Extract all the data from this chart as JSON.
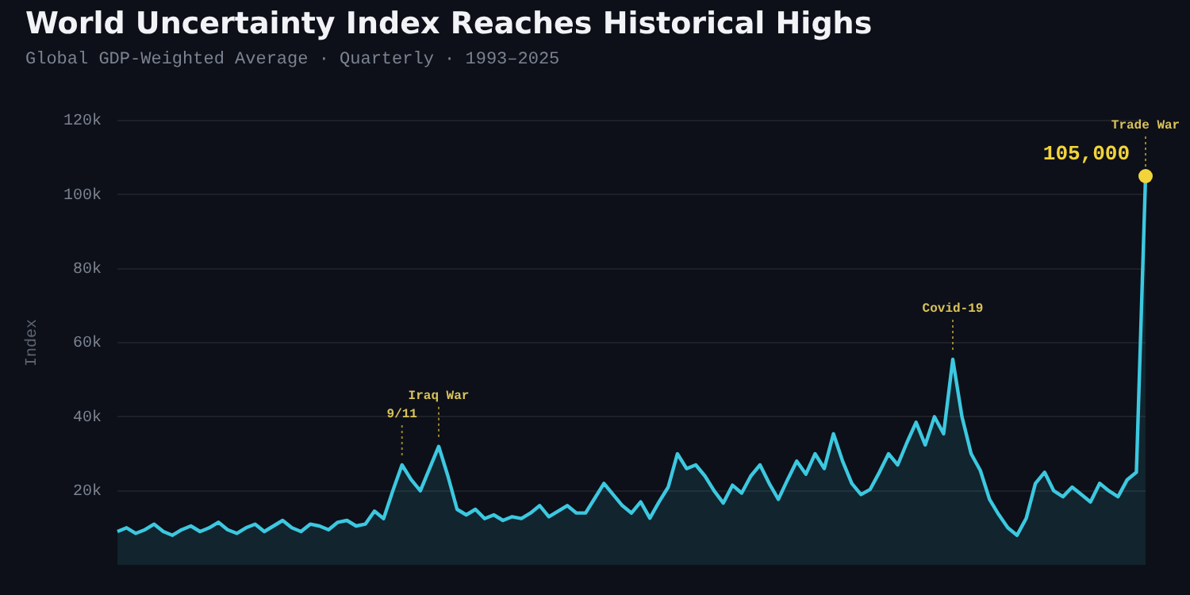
{
  "chart_data": {
    "type": "area",
    "title": "World Uncertainty Index Reaches Historical Highs",
    "subtitle": "Global GDP-Weighted Average · Quarterly · 1993–2025",
    "ylabel": "Index",
    "categories": [
      null,
      null,
      null,
      null,
      null,
      null,
      null,
      null,
      null,
      null,
      null,
      null,
      null,
      null,
      null,
      null,
      null,
      null,
      null,
      null,
      null,
      null,
      null,
      null,
      null,
      null,
      null,
      null,
      null,
      null,
      null,
      null,
      null,
      null,
      null,
      null,
      null,
      null,
      null,
      null,
      null,
      null,
      null,
      null,
      null,
      null,
      null,
      null,
      null,
      null,
      null,
      null,
      null,
      null,
      null,
      null,
      null,
      null,
      null,
      null,
      null,
      null,
      null,
      null,
      null,
      null,
      null,
      null,
      null,
      null,
      null,
      null,
      null,
      null,
      null,
      null,
      null,
      null,
      null,
      null,
      null,
      null,
      null,
      null,
      null,
      null,
      null,
      null,
      null,
      null,
      null,
      null,
      null,
      null,
      null,
      null,
      null,
      null,
      null,
      null,
      null,
      null,
      null,
      null,
      null,
      null,
      null,
      null,
      null,
      null,
      null,
      null,
      null
    ],
    "series": [
      {
        "color": "#3cc8e0",
        "values": [
          9000,
          10000,
          8500,
          9500,
          11000,
          9000,
          8000,
          9500,
          10500,
          9000,
          10000,
          11500,
          9500,
          8500,
          10000,
          11000,
          9000,
          10500,
          12000,
          10000,
          9000,
          11000,
          10500,
          9500,
          11500,
          12000,
          10500,
          11000,
          14500,
          12500,
          20000,
          27000,
          23000,
          20000,
          26000,
          32000,
          24000,
          15000,
          13500,
          15000,
          12500,
          13500,
          12000,
          13000,
          12500,
          14000,
          16000,
          13000,
          14500,
          16000,
          14000,
          14000,
          18000,
          22000,
          19000,
          16000,
          14000,
          17000,
          12600,
          17000,
          21000,
          30000,
          26000,
          27000,
          24000,
          20000,
          16700,
          21500,
          19400,
          24000,
          27000,
          22000,
          17700,
          23000,
          28000,
          24500,
          30000,
          26000,
          35400,
          28000,
          22000,
          19000,
          20400,
          25000,
          30000,
          27000,
          33000,
          38500,
          32400,
          40000,
          35400,
          55500,
          40000,
          30000,
          25500,
          17700,
          13600,
          10000,
          8000,
          12600,
          22000,
          25000,
          20000,
          18400,
          21000,
          19000,
          17000,
          22000,
          20000,
          18400,
          23000,
          25000,
          105000
        ],
        "value_labels": [
          null,
          null,
          null,
          null,
          null,
          null,
          null,
          null,
          null,
          null,
          null,
          null,
          null,
          null,
          null,
          null,
          null,
          null,
          null,
          null,
          null,
          null,
          null,
          null,
          null,
          null,
          null,
          null,
          null,
          null,
          null,
          null,
          null,
          null,
          null,
          null,
          null,
          null,
          null,
          null,
          null,
          null,
          null,
          null,
          null,
          null,
          null,
          null,
          null,
          null,
          null,
          null,
          null,
          null,
          null,
          null,
          null,
          null,
          null,
          null,
          null,
          null,
          null,
          null,
          null,
          null,
          null,
          null,
          null,
          null,
          null,
          null,
          null,
          null,
          null,
          null,
          null,
          null,
          null,
          null,
          null,
          null,
          null,
          null,
          null,
          null,
          null,
          null,
          null,
          null,
          null,
          null,
          null,
          null,
          null,
          null,
          null,
          null,
          null,
          null,
          null,
          null,
          null,
          null,
          null,
          null,
          null,
          null,
          null,
          null,
          null,
          null,
          "105,000"
        ]
      }
    ],
    "ylim": [
      0,
      120000
    ],
    "yticks": [
      {
        "value": 20000,
        "label": "20k"
      },
      {
        "value": 40000,
        "label": "40k"
      },
      {
        "value": 60000,
        "label": "60k"
      },
      {
        "value": 80000,
        "label": "80k"
      },
      {
        "value": 100000,
        "label": "100k"
      },
      {
        "value": 120000,
        "label": "120k"
      }
    ],
    "annotations": [
      {
        "text": "9/11",
        "y": 27000
      },
      {
        "text": "Iraq War",
        "y": 32000
      },
      {
        "text": "Covid-19",
        "y": 55500
      },
      {
        "text": "Trade War",
        "y": 105000
      }
    ],
    "grid": "y",
    "legend": false,
    "marker": "none",
    "tick_labels": "y"
  }
}
